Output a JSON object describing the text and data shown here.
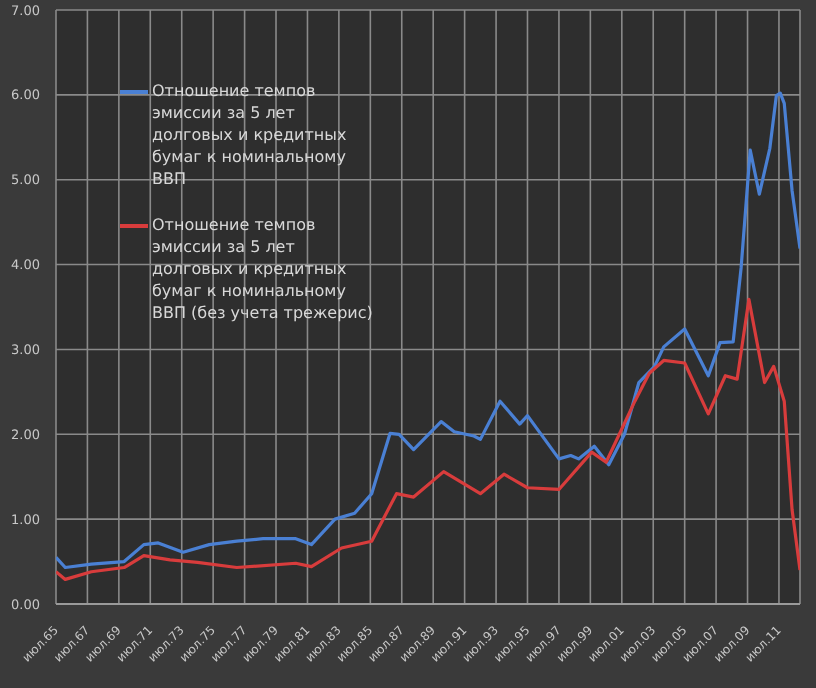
{
  "chart_data": {
    "type": "line",
    "legend": "top left",
    "grid": true,
    "marker": "none",
    "line_style": "solid",
    "xlim": [
      "1965-07",
      "2012-11"
    ],
    "xticks": [
      {
        "value": "1965-07",
        "label": "июл.65"
      },
      {
        "value": "1967-07",
        "label": "июл.67"
      },
      {
        "value": "1969-07",
        "label": "июл.69"
      },
      {
        "value": "1971-07",
        "label": "июл.71"
      },
      {
        "value": "1973-07",
        "label": "июл.73"
      },
      {
        "value": "1975-07",
        "label": "июл.75"
      },
      {
        "value": "1977-07",
        "label": "июл.77"
      },
      {
        "value": "1979-07",
        "label": "июл.79"
      },
      {
        "value": "1981-07",
        "label": "июл.81"
      },
      {
        "value": "1983-07",
        "label": "июл.83"
      },
      {
        "value": "1985-07",
        "label": "июл.85"
      },
      {
        "value": "1987-07",
        "label": "июл.87"
      },
      {
        "value": "1989-07",
        "label": "июл.89"
      },
      {
        "value": "1991-07",
        "label": "июл.91"
      },
      {
        "value": "1993-07",
        "label": "июл.93"
      },
      {
        "value": "1995-07",
        "label": "июл.95"
      },
      {
        "value": "1997-07",
        "label": "июл.97"
      },
      {
        "value": "1999-07",
        "label": "июл.99"
      },
      {
        "value": "2001-07",
        "label": "июл.01"
      },
      {
        "value": "2003-07",
        "label": "июл.03"
      },
      {
        "value": "2005-07",
        "label": "июл.05"
      },
      {
        "value": "2007-07",
        "label": "июл.07"
      },
      {
        "value": "2009-07",
        "label": "июл.09"
      },
      {
        "value": "2011-07",
        "label": "июл.11"
      }
    ],
    "ylim": [
      0,
      7
    ],
    "yticks": [
      {
        "value": 0,
        "label": "0.00"
      },
      {
        "value": 1,
        "label": "1.00"
      },
      {
        "value": 2,
        "label": "2.00"
      },
      {
        "value": 3,
        "label": "3.00"
      },
      {
        "value": 4,
        "label": "4.00"
      },
      {
        "value": 5,
        "label": "5.00"
      },
      {
        "value": 6,
        "label": "6.00"
      },
      {
        "value": 7,
        "label": "7.00"
      }
    ],
    "series": [
      {
        "name": "Отношение темпов эмиссии за 5 лет долговых и кредитных бумаг к номинальному ВВП",
        "color": "#4a80d4",
        "x": [
          "1965-07",
          "1966-02",
          "1967-10",
          "1969-11",
          "1971-02",
          "1972-01",
          "1973-08",
          "1975-04",
          "1977-01",
          "1978-09",
          "1980-10",
          "1981-10",
          "1983-04",
          "1984-07",
          "1985-08",
          "1986-10",
          "1987-05",
          "1988-04",
          "1990-01",
          "1990-11",
          "1992-02",
          "1992-07",
          "1993-10",
          "1995-01",
          "1995-07",
          "1997-07",
          "1998-04",
          "1998-10",
          "1999-10",
          "2000-09",
          "2001-09",
          "2002-08",
          "2003-08",
          "2004-03",
          "2005-07",
          "2007-01",
          "2007-10",
          "2008-08",
          "2009-02",
          "2009-09",
          "2010-04",
          "2010-12",
          "2011-05",
          "2011-08",
          "2011-11",
          "2012-05",
          "2012-11"
        ],
        "values": [
          0.55,
          0.43,
          0.47,
          0.5,
          0.7,
          0.72,
          0.61,
          0.7,
          0.74,
          0.77,
          0.77,
          0.7,
          1.0,
          1.07,
          1.3,
          2.01,
          2.0,
          1.82,
          2.15,
          2.03,
          1.98,
          1.94,
          2.39,
          2.12,
          2.22,
          1.71,
          1.75,
          1.71,
          1.86,
          1.64,
          2.0,
          2.61,
          2.8,
          3.03,
          3.24,
          2.69,
          3.08,
          3.09,
          3.96,
          5.35,
          4.83,
          5.37,
          5.99,
          6.02,
          5.9,
          4.87,
          4.19
        ]
      },
      {
        "name": "Отношение темпов эмиссии за 5 лет долговых и кредитных бумаг к номинальному ВВП (без учета трежерис)",
        "color": "#d83c3c",
        "x": [
          "1965-07",
          "1966-02",
          "1967-10",
          "1969-11",
          "1971-02",
          "1972-10",
          "1974-07",
          "1977-01",
          "1980-10",
          "1981-10",
          "1983-09",
          "1985-08",
          "1987-03",
          "1988-04",
          "1990-03",
          "1992-07",
          "1994-01",
          "1995-07",
          "1997-07",
          "1999-08",
          "2000-07",
          "2002-05",
          "2003-04",
          "2004-03",
          "2005-07",
          "2007-01",
          "2008-02",
          "2008-11",
          "2009-08",
          "2010-08",
          "2011-03",
          "2011-11",
          "2012-05",
          "2012-11"
        ],
        "values": [
          0.38,
          0.29,
          0.38,
          0.43,
          0.57,
          0.52,
          0.49,
          0.43,
          0.48,
          0.44,
          0.66,
          0.74,
          1.3,
          1.26,
          1.56,
          1.3,
          1.53,
          1.37,
          1.35,
          1.79,
          1.67,
          2.39,
          2.72,
          2.87,
          2.84,
          2.24,
          2.69,
          2.65,
          3.59,
          2.61,
          2.8,
          2.39,
          1.11,
          0.4
        ]
      }
    ]
  }
}
